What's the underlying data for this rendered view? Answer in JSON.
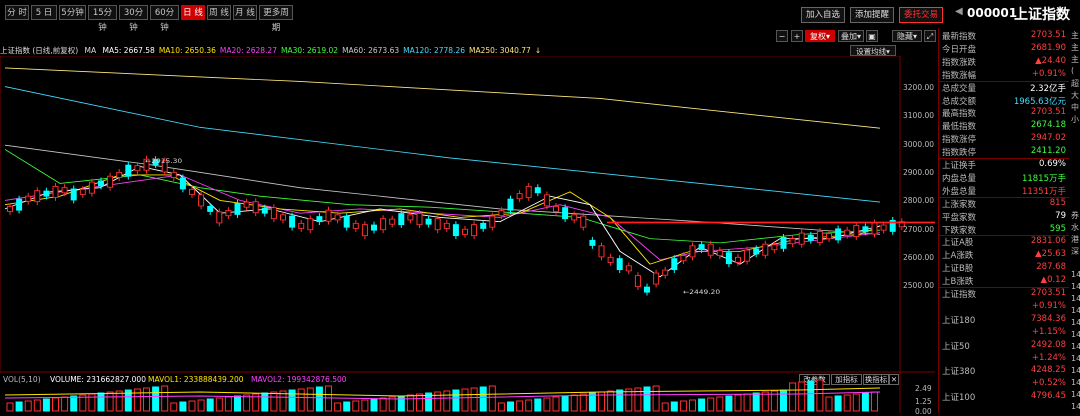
{
  "period_tabs": [
    "分 时",
    "5 日",
    "5分钟",
    "15分钟",
    "30分钟",
    "60分钟",
    "日 线",
    "周 线",
    "月 线",
    "更多周期"
  ],
  "active_period": 6,
  "top_buttons": {
    "add": "加入自选",
    "alert": "添加提醒",
    "trade": "委托交易"
  },
  "stock": {
    "code": "000001",
    "name": "上证指数"
  },
  "chart_controls": {
    "minus": "−",
    "plus": "+",
    "fq": "复权",
    "overlay": "叠加",
    "hide": "隐藏"
  },
  "ma_bar": {
    "title": "上证指数 (日线,前复权)",
    "ma_label": "MA",
    "items": [
      {
        "text": "MA5: 2667.58",
        "color": "#ffffff"
      },
      {
        "text": "MA10: 2650.36",
        "color": "#ffe400"
      },
      {
        "text": "MA20: 2628.27",
        "color": "#ff40ff"
      },
      {
        "text": "MA30: 2619.02",
        "color": "#3cff3c"
      },
      {
        "text": "MA60: 2673.63",
        "color": "#c8c8c8"
      },
      {
        "text": "MA120: 2778.26",
        "color": "#44ddff"
      },
      {
        "text": "MA250: 3040.77",
        "color": "#ffe87a"
      }
    ],
    "setting": "设置均线"
  },
  "price_axis": [
    "3200.00",
    "3100.00",
    "3000.00",
    "2900.00",
    "2800.00",
    "2700.00",
    "2600.00",
    "2500.00"
  ],
  "annotations": {
    "high": "2915.30",
    "low": "2449.20"
  },
  "volume": {
    "label": "VOL(5,10)",
    "volume": "VOLUME: 231662827.000",
    "mavol1": "MAVOL1: 233888439.200",
    "mavol2": "MAVOL2: 199342876.500",
    "btn_params": "改参数",
    "btn_add": "加指标",
    "btn_switch": "换指标",
    "axis": [
      "2.49",
      "1.25",
      "0.00"
    ]
  },
  "info": {
    "rows": [
      {
        "k": "最新指数",
        "v": "2703.51",
        "c": "up"
      },
      {
        "k": "今日开盘",
        "v": "2681.90",
        "c": "up"
      },
      {
        "k": "指数涨跌",
        "v": "▲24.40",
        "c": "up"
      },
      {
        "k": "指数涨幅",
        "v": "+0.91%",
        "c": "up"
      },
      {
        "k": "总成交量",
        "v": "2.32亿手",
        "c": "wh"
      },
      {
        "k": "总成交额",
        "v": "1965.63亿元",
        "c": "cy"
      },
      {
        "k": "最高指数",
        "v": "2703.51",
        "c": "up"
      },
      {
        "k": "最低指数",
        "v": "2674.18",
        "c": "dn"
      },
      {
        "k": "指数涨停",
        "v": "2947.02",
        "c": "up"
      },
      {
        "k": "指数跌停",
        "v": "2411.20",
        "c": "dn"
      },
      {
        "k": "上证换手",
        "v": "0.69%",
        "c": "wh"
      },
      {
        "k": "内盘总量",
        "v": "11815万手",
        "c": "dn"
      },
      {
        "k": "外盘总量",
        "v": "11351万手",
        "c": "up"
      },
      {
        "k": "上涨家数",
        "v": "815",
        "c": "up"
      },
      {
        "k": "平盘家数",
        "v": "79",
        "c": "wh"
      },
      {
        "k": "下跌家数",
        "v": "595",
        "c": "dn"
      },
      {
        "k": "上证A股",
        "v": "2831.06",
        "c": "up"
      },
      {
        "k": "上A涨跌",
        "v": "▲25.63",
        "c": "up"
      },
      {
        "k": "上证B股",
        "v": "287.68",
        "c": "up"
      },
      {
        "k": "上B涨跌",
        "v": "▲0.12",
        "c": "up"
      },
      {
        "k": "上证指数",
        "v": "2703.51",
        "c": "up"
      },
      {
        "k": "",
        "v": "+0.91%",
        "c": "up"
      },
      {
        "k": "上证180",
        "v": "7384.36",
        "c": "up"
      },
      {
        "k": "",
        "v": "+1.15%",
        "c": "up"
      },
      {
        "k": "上证50",
        "v": "2492.08",
        "c": "up"
      },
      {
        "k": "",
        "v": "+1.24%",
        "c": "up"
      },
      {
        "k": "上证380",
        "v": "4248.25",
        "c": "up"
      },
      {
        "k": "",
        "v": "+0.52%",
        "c": "up"
      },
      {
        "k": "上证100",
        "v": "4796.45",
        "c": "up"
      }
    ]
  },
  "right_strip": [
    "主",
    "主",
    "主",
    "(",
    "超",
    "大",
    "中",
    "小",
    "",
    "",
    "",
    "",
    "",
    "",
    "",
    "券",
    "水",
    "港",
    "深",
    "",
    "14",
    "14",
    "14",
    "14",
    "14",
    "14",
    "14",
    "14",
    "14",
    "14",
    "14",
    "14"
  ]
}
